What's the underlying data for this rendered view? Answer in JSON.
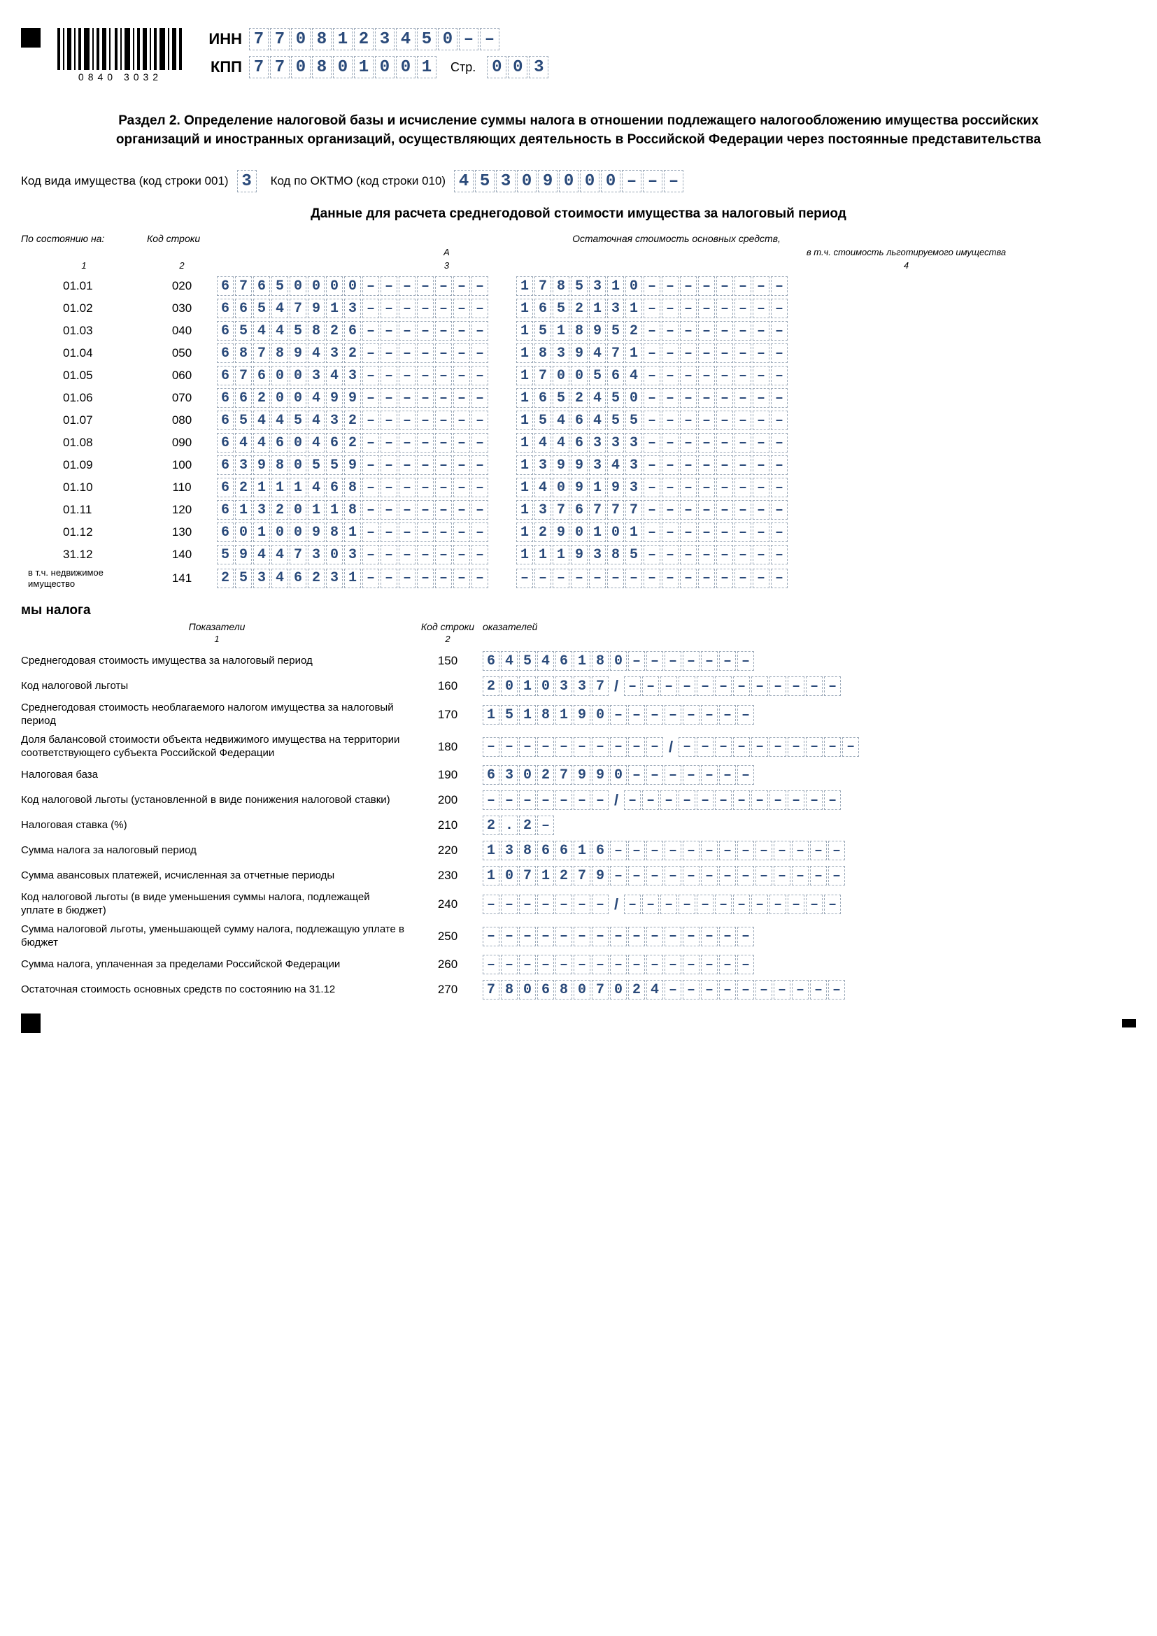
{
  "barcode_text": "0840 3032",
  "inn_label": "ИНН",
  "inn": "7708123450",
  "kpp_label": "КПП",
  "kpp": "770801001",
  "page_label": "Стр.",
  "page": "003",
  "section_title": "Раздел 2. Определение налоговой базы и исчисление суммы налога в отношении подлежащего налогообложению имущества российских организаций и иностранных организаций, осуществляющих деятельность в Российской Федерации через постоянные представительства",
  "prop_code_label": "Код вида имущества (код строки 001)",
  "prop_code": "3",
  "oktmo_label": "Код по ОКТМО (код строки 010)",
  "oktmo": "45309000",
  "data_subtitle": "Данные для расчета среднегодовой стоимости имущества за налоговый период",
  "col_headers": {
    "c1": "По состоянию на:",
    "c2": "Код строки",
    "c34": "Остаточная стоимость основных средств,",
    "c4sub": "в т.ч. стоимость льготируемого имущества"
  },
  "col_nums": {
    "n1": "1",
    "n2": "2",
    "n3": "3",
    "n4": "4"
  },
  "col_letter_a": "А",
  "rows": [
    {
      "date": "01.01",
      "code": "020",
      "v3": "67650000",
      "v4": "1785310"
    },
    {
      "date": "01.02",
      "code": "030",
      "v3": "66547913",
      "v4": "1652131"
    },
    {
      "date": "01.03",
      "code": "040",
      "v3": "65445826",
      "v4": "1518952"
    },
    {
      "date": "01.04",
      "code": "050",
      "v3": "68789432",
      "v4": "1839471"
    },
    {
      "date": "01.05",
      "code": "060",
      "v3": "67600343",
      "v4": "1700564"
    },
    {
      "date": "01.06",
      "code": "070",
      "v3": "66200499",
      "v4": "1652450"
    },
    {
      "date": "01.07",
      "code": "080",
      "v3": "65445432",
      "v4": "1546455"
    },
    {
      "date": "01.08",
      "code": "090",
      "v3": "64460462",
      "v4": "1446333"
    },
    {
      "date": "01.09",
      "code": "100",
      "v3": "63980559",
      "v4": "1399343"
    },
    {
      "date": "01.10",
      "code": "110",
      "v3": "62111468",
      "v4": "1409193"
    },
    {
      "date": "01.11",
      "code": "120",
      "v3": "61320118",
      "v4": "1376777"
    },
    {
      "date": "01.12",
      "code": "130",
      "v3": "60100981",
      "v4": "1290101"
    },
    {
      "date": "31.12",
      "code": "140",
      "v3": "59447303",
      "v4": "1119385"
    }
  ],
  "row141": {
    "date": "в т.ч. недвижимое имущество",
    "code": "141",
    "v3": "25346231",
    "v4": ""
  },
  "tax_title": "мы налога",
  "ind_headers": {
    "h1": "Показатели",
    "h2": "Код строки",
    "h3": "оказателей"
  },
  "ind_nums": {
    "n1": "1",
    "n2": "2"
  },
  "indicators": [
    {
      "label": "Среднегодовая стоимость имущества за налоговый период",
      "code": "150",
      "type": "single",
      "v": "64546180",
      "len": 15
    },
    {
      "label": "Код налоговой льготы",
      "code": "160",
      "type": "split",
      "v1": "2010337",
      "len1": 7,
      "v2": "",
      "len2": 12
    },
    {
      "label": "Среднегодовая стоимость необлагаемого налогом имущества за налоговый период",
      "code": "170",
      "type": "single",
      "v": "1518190",
      "len": 15
    },
    {
      "label": "Доля балансовой стоимости объекта недвижимого имущества на территории соответствующего субъекта Российской Федерации",
      "code": "180",
      "type": "split",
      "v1": "",
      "len1": 10,
      "v2": "",
      "len2": 10
    },
    {
      "label": "Налоговая база",
      "code": "190",
      "type": "single",
      "v": "63027990",
      "len": 15
    },
    {
      "label": "Код налоговой льготы (установленной в виде понижения налоговой ставки)",
      "code": "200",
      "type": "split",
      "v1": "",
      "len1": 7,
      "v2": "",
      "len2": 12
    },
    {
      "label": "Налоговая ставка (%)",
      "code": "210",
      "type": "single",
      "v": "2.2",
      "len": 4
    },
    {
      "label": "Сумма налога за налоговый период",
      "code": "220",
      "type": "single",
      "v": "1386616",
      "len": 20
    },
    {
      "label": "Сумма авансовых платежей, исчисленная за отчетные периоды",
      "code": "230",
      "type": "single",
      "v": "1071279",
      "len": 20
    },
    {
      "label": "Код налоговой льготы (в виде уменьшения суммы налога, подлежащей уплате в бюджет)",
      "code": "240",
      "type": "split",
      "v1": "",
      "len1": 7,
      "v2": "",
      "len2": 12
    },
    {
      "label": "Сумма налоговой льготы, уменьшающей сумму налога, подлежащую уплате в бюджет",
      "code": "250",
      "type": "single",
      "v": "",
      "len": 15
    },
    {
      "label": "Сумма налога, уплаченная за пределами Российской Федерации",
      "code": "260",
      "type": "single",
      "v": "",
      "len": 15
    },
    {
      "label": "Остаточная стоимость основных средств по состоянию на 31.12",
      "code": "270",
      "type": "single",
      "v": "7806807024",
      "len": 20
    }
  ],
  "cell_len_main": 15,
  "inn_len": 12,
  "kpp_len": 9,
  "page_len": 3,
  "oktmo_len": 11
}
